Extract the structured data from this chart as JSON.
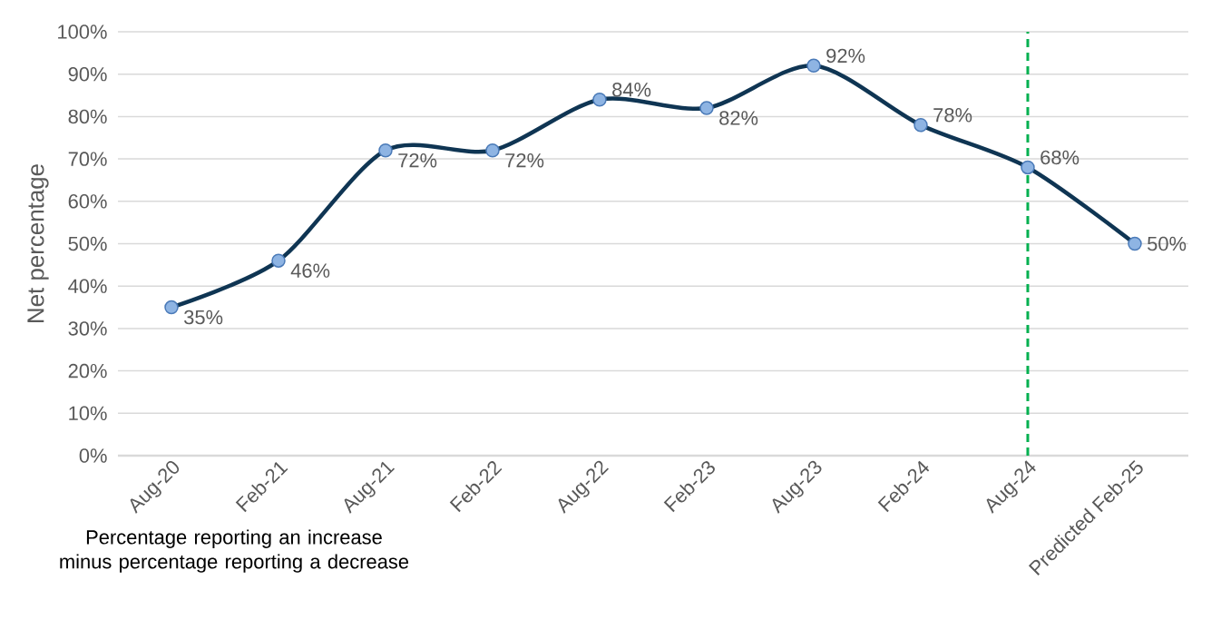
{
  "chart_data": {
    "type": "line",
    "ylabel": "Net percentage",
    "categories": [
      "Aug-20",
      "Feb-21",
      "Aug-21",
      "Feb-22",
      "Aug-22",
      "Feb-23",
      "Aug-23",
      "Feb-24",
      "Aug-24",
      "Predicted Feb-25"
    ],
    "series": [
      {
        "color": "#0f3553",
        "values": [
          35,
          46,
          72,
          72,
          84,
          82,
          92,
          78,
          68,
          50
        ],
        "value_labels": [
          "35%",
          "46%",
          "72%",
          "72%",
          "84%",
          "82%",
          "92%",
          "78%",
          "68%",
          "50%"
        ]
      }
    ],
    "ylim": [
      0,
      100
    ],
    "yticks": [
      {
        "value": 0,
        "label": "0%"
      },
      {
        "value": 10,
        "label": "10%"
      },
      {
        "value": 20,
        "label": "20%"
      },
      {
        "value": 30,
        "label": "30%"
      },
      {
        "value": 40,
        "label": "40%"
      },
      {
        "value": 50,
        "label": "50%"
      },
      {
        "value": 60,
        "label": "60%"
      },
      {
        "value": 70,
        "label": "70%"
      },
      {
        "value": 80,
        "label": "80%"
      },
      {
        "value": 90,
        "label": "90%"
      },
      {
        "value": 100,
        "label": "100%"
      }
    ],
    "grid": "y",
    "marker": "circle",
    "line_style": "solid",
    "ref_lines": [
      {
        "axis": "x",
        "value": "Aug-24",
        "color": "#00b050",
        "line_style": "dashed"
      }
    ],
    "annotations": [
      "Percentage reporting an increase minus percentage reporting a decrease"
    ]
  }
}
